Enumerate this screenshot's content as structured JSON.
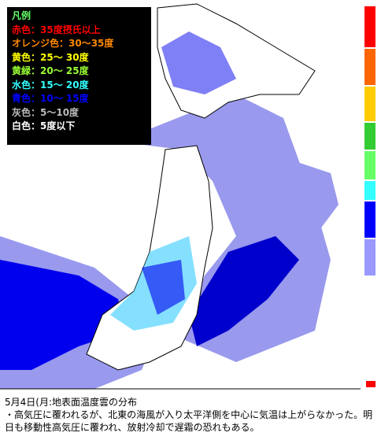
{
  "legend": {
    "title": "凡例",
    "items": [
      "赤色：35度摂氏以上",
      "オレンジ色：30〜35度",
      "黄色：25〜 30度",
      "黄緑：20〜 25度",
      "水色：15〜 20度",
      "青色：10〜 15度",
      "灰色：5〜10度",
      "白色：5度以下"
    ]
  },
  "caption": {
    "title": "5月4日(月:地表面温度雲の分布",
    "body": "・高気圧に覆われるが、北東の海風が入り太平洋側を中心に気温は上がらなかった。明日も移動性高気圧に覆われ、放射冷却で遅霜の恐れもある。"
  }
}
